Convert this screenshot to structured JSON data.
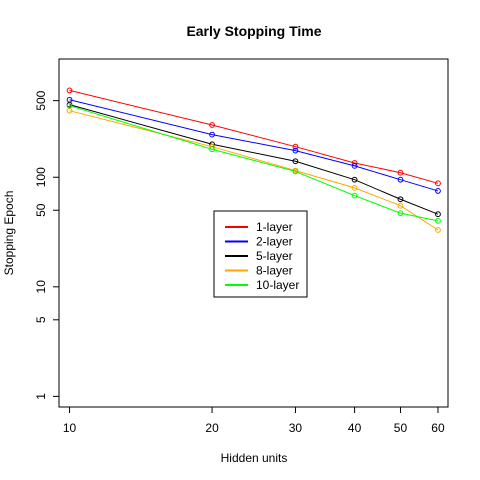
{
  "chart_data": {
    "type": "line",
    "title": "Early Stopping Time",
    "xlabel": "Hidden units",
    "ylabel": "Stopping Epoch",
    "x_scale": "log",
    "y_scale": "log",
    "xlim": [
      9.5,
      63
    ],
    "ylim": [
      0.8,
      1200
    ],
    "x": [
      10,
      20,
      30,
      40,
      50,
      60
    ],
    "x_ticks": [
      10,
      20,
      30,
      40,
      50,
      60
    ],
    "y_ticks": [
      1,
      5,
      10,
      50,
      100,
      500
    ],
    "grid": false,
    "legend_position": "center",
    "series": [
      {
        "name": "1-layer",
        "color": "#ff0000",
        "values": [
          620,
          300,
          190,
          135,
          110,
          88
        ]
      },
      {
        "name": "2-layer",
        "color": "#0000ff",
        "values": [
          510,
          245,
          175,
          127,
          95,
          75
        ]
      },
      {
        "name": "5-layer",
        "color": "#000000",
        "values": [
          460,
          200,
          140,
          95,
          63,
          46
        ]
      },
      {
        "name": "8-layer",
        "color": "#ffa500",
        "values": [
          405,
          190,
          115,
          80,
          55,
          33
        ]
      },
      {
        "name": "10-layer",
        "color": "#00ff00",
        "values": [
          450,
          180,
          113,
          68,
          47,
          40
        ]
      }
    ]
  }
}
